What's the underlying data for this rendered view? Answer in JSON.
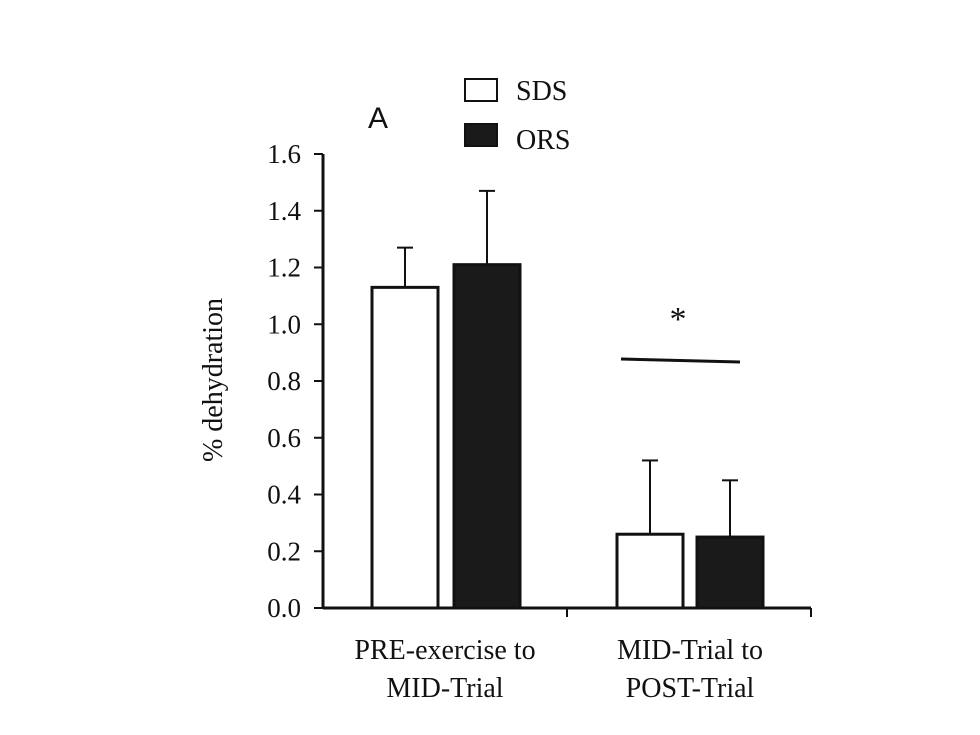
{
  "chart_data": {
    "type": "bar",
    "panel_label": "A",
    "ylabel": "% dehydration",
    "ylim": [
      0,
      1.6
    ],
    "yticks": [
      "0.0",
      "0.2",
      "0.4",
      "0.6",
      "0.8",
      "1.0",
      "1.2",
      "1.4",
      "1.6"
    ],
    "categories": [
      [
        "PRE-exercise to",
        "MID-Trial"
      ],
      [
        "MID-Trial to",
        "POST-Trial"
      ]
    ],
    "series": [
      {
        "name": "SDS",
        "values": [
          1.13,
          0.26
        ],
        "errors": [
          0.14,
          0.26
        ],
        "fill": "#ffffff"
      },
      {
        "name": "ORS",
        "values": [
          1.21,
          0.25
        ],
        "errors": [
          0.26,
          0.2
        ],
        "fill": "#1a1a1a"
      }
    ],
    "annotations": [
      {
        "category_index": 1,
        "text": "*"
      }
    ],
    "legend_position": "top-center"
  }
}
